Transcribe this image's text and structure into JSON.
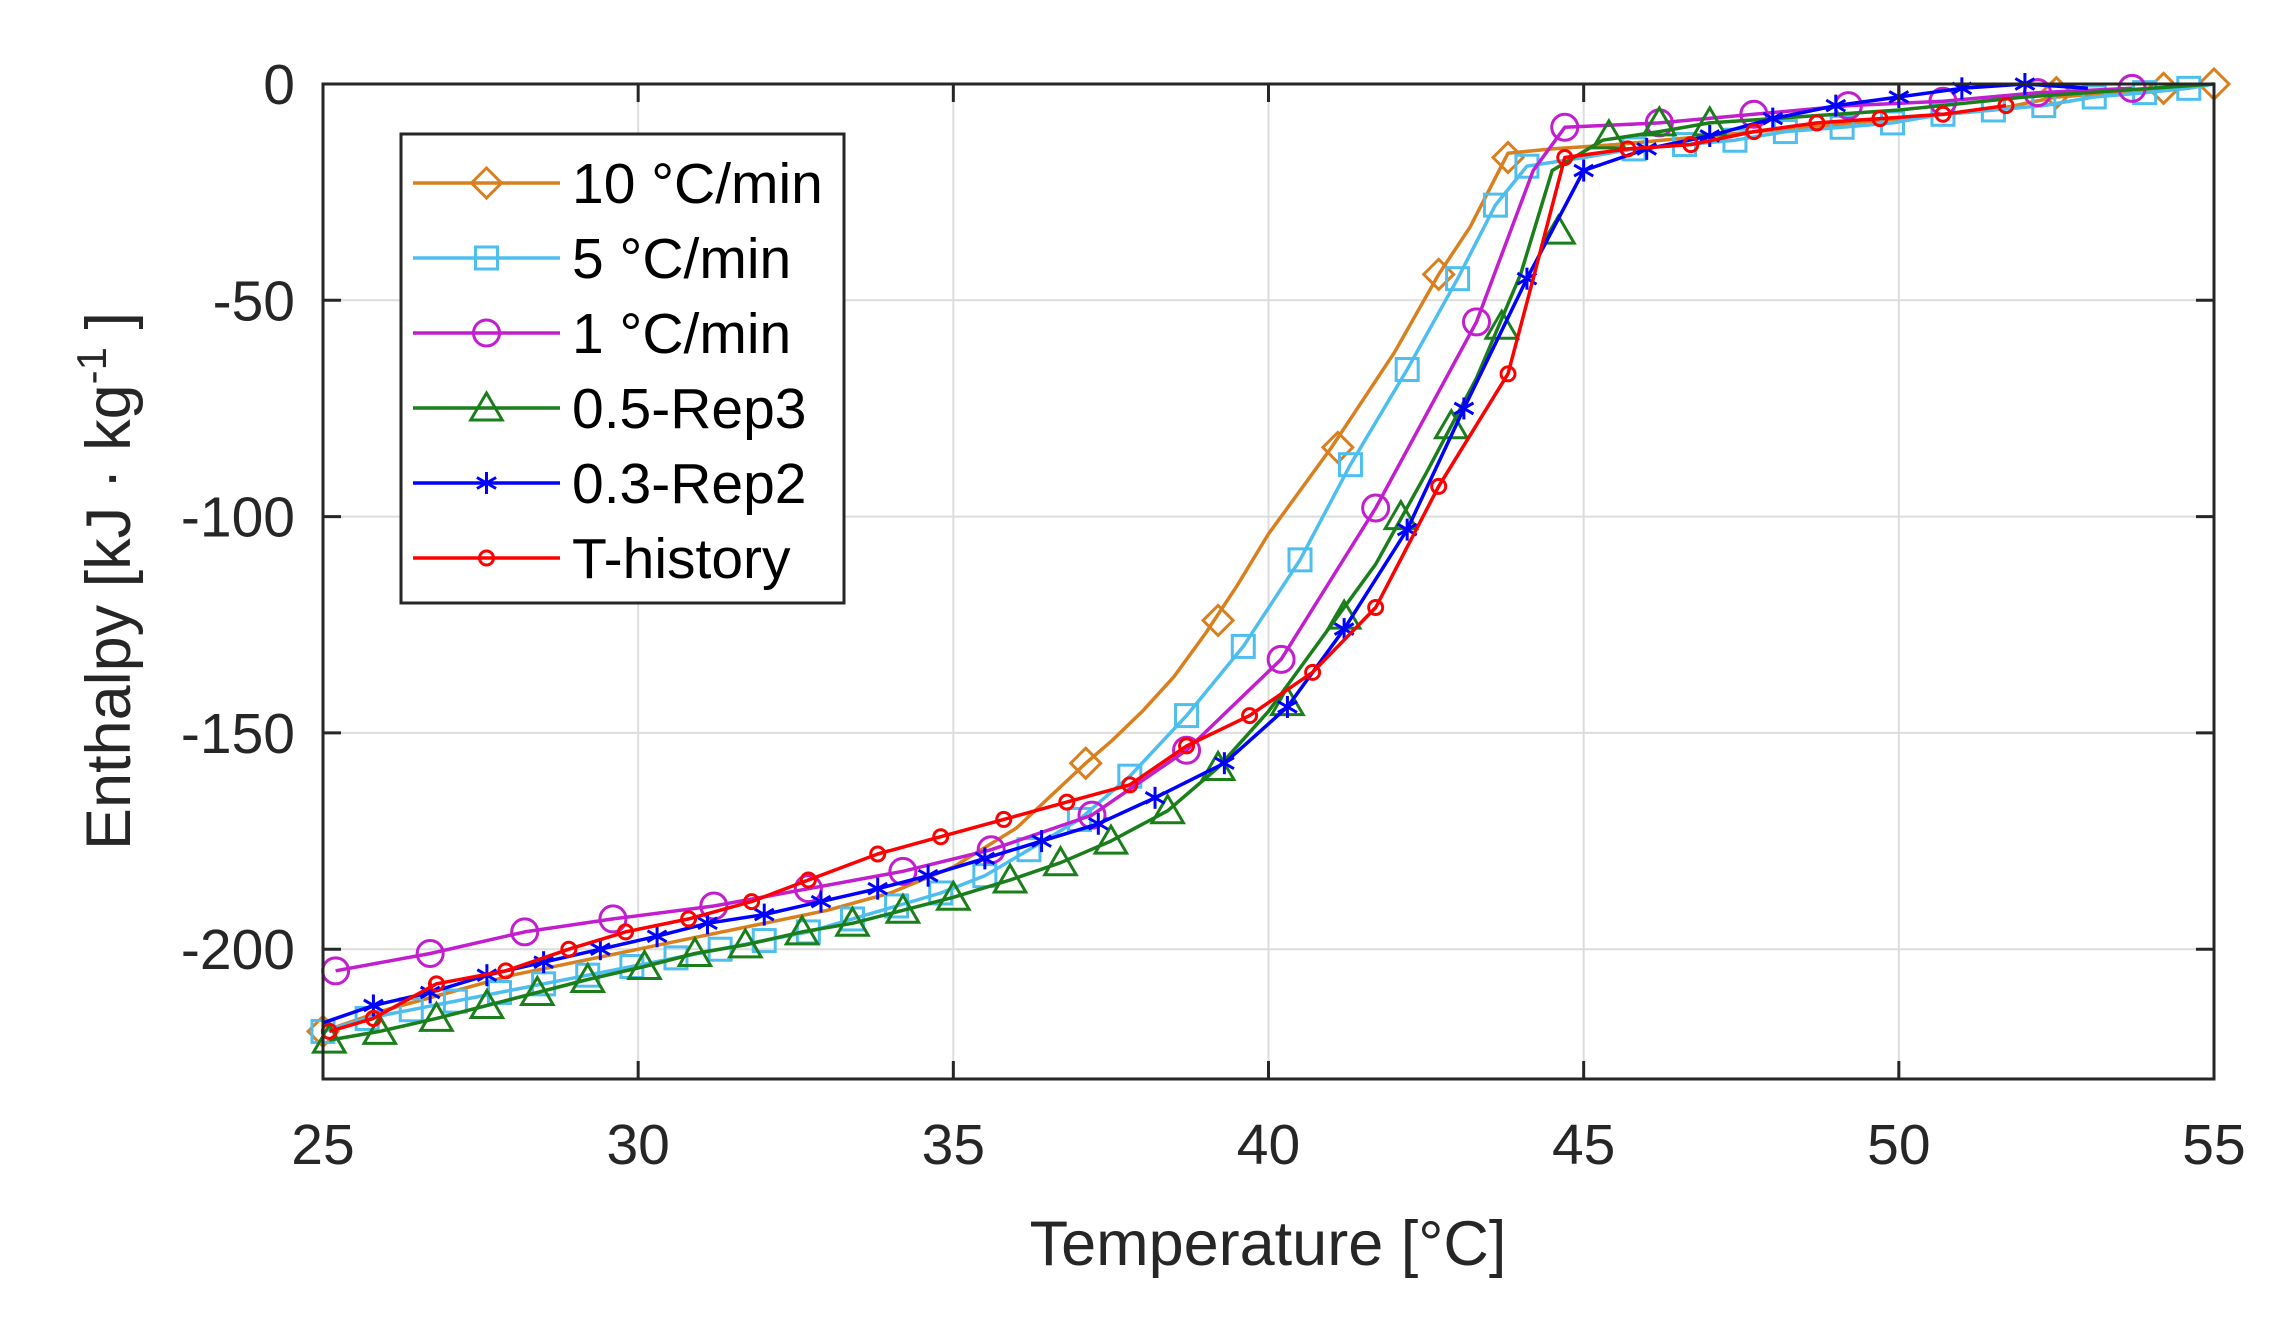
{
  "chart_data": {
    "type": "line",
    "title": "",
    "xlabel": "Temperature [°C]",
    "ylabel": "Enthalpy [kJ · kg",
    "ylabel_exponent": "-1",
    "ylabel_close": " ]",
    "xlim": [
      25,
      55
    ],
    "ylim": [
      -230,
      0
    ],
    "xticks": [
      25,
      30,
      35,
      40,
      45,
      50,
      55
    ],
    "yticks": [
      0,
      -50,
      -100,
      -150,
      -200
    ],
    "grid": true,
    "legend_position": "top-left",
    "series": [
      {
        "name": "10 °C/min",
        "color": "#D97F1E",
        "marker": "diamond",
        "x": [
          25,
          26,
          27,
          28,
          29,
          30,
          31,
          32,
          33,
          34,
          35,
          36,
          37.1,
          37.5,
          38,
          38.5,
          39,
          39.5,
          40,
          40.5,
          41,
          41.5,
          42,
          42.7,
          43.2,
          43.8,
          44.5,
          45.5,
          47,
          48.5,
          50,
          51.5,
          52.5,
          53.5,
          54.2,
          55
        ],
        "y": [
          -219,
          -214,
          -210,
          -206,
          -203,
          -200,
          -197,
          -194,
          -191,
          -187,
          -181,
          -172,
          -157,
          -152,
          -145,
          -137,
          -127,
          -116,
          -104,
          -94,
          -84,
          -73,
          -62,
          -44,
          -33,
          -16,
          -15,
          -14,
          -12,
          -10,
          -8,
          -6,
          -3,
          -2,
          -1,
          0
        ],
        "marker_x": [
          25,
          37.1,
          39.2,
          41.1,
          42.7,
          43.8,
          52.5,
          54.2,
          55
        ],
        "marker_y": [
          -219,
          -157,
          -124,
          -84,
          -44,
          -17,
          -2,
          -1,
          0
        ]
      },
      {
        "name": "5 °C/min",
        "color": "#4DBEEE",
        "marker": "square",
        "x": [
          25,
          25.7,
          26.4,
          27.1,
          27.8,
          28.5,
          29.2,
          29.9,
          30.6,
          31.3,
          32,
          32.7,
          33.4,
          34.1,
          34.8,
          35.5,
          36.2,
          37,
          37.8,
          38.7,
          39.6,
          40.5,
          41.3,
          42.2,
          43,
          43.6,
          44.1,
          45,
          45.8,
          46.6,
          47.4,
          48.2,
          49.1,
          49.9,
          50.7,
          51.5,
          52.3,
          53.1,
          53.9,
          54.6,
          55
        ],
        "y": [
          -219,
          -216,
          -214,
          -212,
          -210,
          -208,
          -206,
          -204,
          -202,
          -200,
          -198,
          -196,
          -193,
          -190,
          -187,
          -183,
          -177,
          -170,
          -160,
          -146,
          -130,
          -110,
          -88,
          -66,
          -45,
          -28,
          -19,
          -17,
          -15,
          -14,
          -13,
          -11,
          -10,
          -9,
          -7,
          -6,
          -5,
          -3,
          -2,
          -1,
          0
        ],
        "marker_x": [
          25,
          25.7,
          26.4,
          27.1,
          27.8,
          28.5,
          29.2,
          29.9,
          30.6,
          31.3,
          32,
          32.7,
          33.4,
          34.1,
          34.8,
          35.5,
          36.2,
          37,
          37.8,
          38.7,
          39.6,
          40.5,
          41.3,
          42.2,
          43,
          43.6,
          44.1,
          45.8,
          46.6,
          47.4,
          48.2,
          49.1,
          49.9,
          50.7,
          51.5,
          52.3,
          53.1,
          53.9,
          54.6
        ],
        "marker_y": [
          -219,
          -216,
          -214,
          -212,
          -210,
          -208,
          -206,
          -204,
          -202,
          -200,
          -198,
          -196,
          -193,
          -190,
          -187,
          -183,
          -177,
          -170,
          -160,
          -146,
          -130,
          -110,
          -88,
          -66,
          -45,
          -28,
          -19,
          -15,
          -14,
          -13,
          -11,
          -10,
          -9,
          -7,
          -6,
          -5,
          -3,
          -2,
          -1
        ]
      },
      {
        "name": "1 °C/min",
        "color": "#C21ECF",
        "marker": "circle",
        "x": [
          25.2,
          26.7,
          28.2,
          29.6,
          31.2,
          32.7,
          34.2,
          35.6,
          37.2,
          38.7,
          40.2,
          41.7,
          43.3,
          44.2,
          44.7,
          46.2,
          47.7,
          49.2,
          50.7,
          52.2,
          53.7
        ],
        "y": [
          -205,
          -201,
          -196,
          -193,
          -190,
          -186,
          -182,
          -177,
          -169,
          -154,
          -133,
          -98,
          -55,
          -20,
          -10,
          -9,
          -7,
          -5,
          -4,
          -2,
          -1
        ],
        "marker_x": [
          25.2,
          26.7,
          28.2,
          29.6,
          31.2,
          32.7,
          34.2,
          35.6,
          37.2,
          38.7,
          40.2,
          41.7,
          43.3,
          44.7,
          46.2,
          47.7,
          49.2,
          50.7,
          52.2,
          53.7
        ],
        "marker_y": [
          -205,
          -201,
          -196,
          -193,
          -190,
          -186,
          -182,
          -177,
          -169,
          -154,
          -133,
          -98,
          -55,
          -10,
          -9,
          -7,
          -5,
          -4,
          -2,
          -1
        ]
      },
      {
        "name": "0.5-Rep3",
        "color": "#1A7F1A",
        "marker": "triangle",
        "x": [
          25.1,
          25.9,
          26.8,
          27.6,
          28.4,
          29.2,
          30.1,
          30.9,
          31.7,
          32.6,
          33.4,
          34.2,
          35,
          35.9,
          36.7,
          37.5,
          38.4,
          39.2,
          40,
          40.8,
          41.7,
          42.5,
          43.3,
          44,
          44.5,
          45.3,
          46.2,
          47,
          48,
          50,
          52,
          54,
          55
        ],
        "y": [
          -221,
          -219,
          -216,
          -213,
          -210,
          -207,
          -204,
          -201,
          -199,
          -196,
          -194,
          -191,
          -188,
          -184,
          -180,
          -175,
          -168,
          -158,
          -145,
          -129,
          -111,
          -90,
          -68,
          -44,
          -20,
          -13,
          -11,
          -9,
          -8,
          -6,
          -3,
          -1,
          0
        ],
        "marker_x": [
          25.1,
          25.9,
          26.8,
          27.6,
          28.4,
          29.2,
          30.1,
          30.9,
          31.7,
          32.6,
          33.4,
          34.2,
          35,
          35.9,
          36.7,
          37.5,
          38.4,
          39.2,
          40.3,
          41.2,
          42.1,
          42.9,
          43.7,
          44.6,
          45.4,
          46.2,
          47
        ],
        "marker_y": [
          -221,
          -219,
          -216,
          -213,
          -210,
          -207,
          -204,
          -201,
          -199,
          -196,
          -194,
          -191,
          -188,
          -184,
          -180,
          -175,
          -168,
          -158,
          -143,
          -123,
          -100,
          -79,
          -56,
          -34,
          -12,
          -9,
          -9
        ]
      },
      {
        "name": "0.3-Rep2",
        "color": "#0000FF",
        "marker": "star",
        "x": [
          25,
          25.8,
          26.7,
          27.6,
          28.5,
          29.4,
          30.3,
          31.1,
          32,
          32.9,
          33.8,
          34.6,
          35.5,
          36.4,
          37.3,
          38.2,
          39.3,
          40.3,
          41.2,
          42.2,
          43.1,
          44.1,
          45,
          46,
          47,
          48,
          49,
          50,
          51,
          52,
          53
        ],
        "y": [
          -217,
          -213,
          -210,
          -206,
          -203,
          -200,
          -197,
          -194,
          -192,
          -189,
          -186,
          -183,
          -179,
          -175,
          -171,
          -165,
          -157,
          -144,
          -126,
          -103,
          -75,
          -45,
          -20,
          -15,
          -12,
          -8,
          -5,
          -3,
          -1,
          0,
          -1
        ],
        "marker_x": [
          25.8,
          26.7,
          27.6,
          28.5,
          29.4,
          30.3,
          31.1,
          32,
          32.9,
          33.8,
          34.6,
          35.5,
          36.4,
          37.3,
          38.2,
          39.3,
          40.3,
          41.2,
          42.2,
          43.1,
          44.1,
          45,
          46,
          47,
          48,
          49,
          50,
          51,
          52
        ],
        "marker_y": [
          -213,
          -210,
          -206,
          -203,
          -200,
          -197,
          -194,
          -192,
          -189,
          -186,
          -183,
          -179,
          -175,
          -171,
          -165,
          -157,
          -144,
          -126,
          -103,
          -75,
          -45,
          -20,
          -15,
          -12,
          -8,
          -5,
          -3,
          -1,
          0
        ]
      },
      {
        "name": "T-history",
        "color": "#FF0000",
        "marker": "dot",
        "x": [
          25.1,
          25.8,
          26.8,
          27.9,
          28.9,
          29.8,
          30.8,
          31.8,
          32.7,
          33.8,
          34.8,
          35.8,
          36.8,
          37.8,
          38.7,
          39.7,
          40.7,
          41.7,
          42.7,
          43.8,
          44.2,
          44.7,
          45.7,
          46.7,
          47.7,
          48.7,
          49.7,
          50.7,
          51.7
        ],
        "y": [
          -219,
          -216,
          -208,
          -205,
          -200,
          -196,
          -193,
          -189,
          -184,
          -178,
          -174,
          -170,
          -166,
          -162,
          -153,
          -146,
          -136,
          -121,
          -93,
          -67,
          -45,
          -17,
          -15,
          -14,
          -11,
          -9,
          -8,
          -7,
          -5
        ],
        "marker_x": [
          25.1,
          25.8,
          26.8,
          27.9,
          28.9,
          29.8,
          30.8,
          31.8,
          32.7,
          33.8,
          34.8,
          35.8,
          36.8,
          37.8,
          38.7,
          39.7,
          40.7,
          41.7,
          42.7,
          43.8,
          44.7,
          45.7,
          46.7,
          47.7,
          48.7,
          49.7,
          50.7,
          51.7
        ],
        "marker_y": [
          -219,
          -216,
          -208,
          -205,
          -200,
          -196,
          -193,
          -189,
          -184,
          -178,
          -174,
          -170,
          -166,
          -162,
          -153,
          -146,
          -136,
          -121,
          -93,
          -67,
          -17,
          -15,
          -14,
          -11,
          -9,
          -8,
          -7,
          -5
        ]
      }
    ]
  }
}
